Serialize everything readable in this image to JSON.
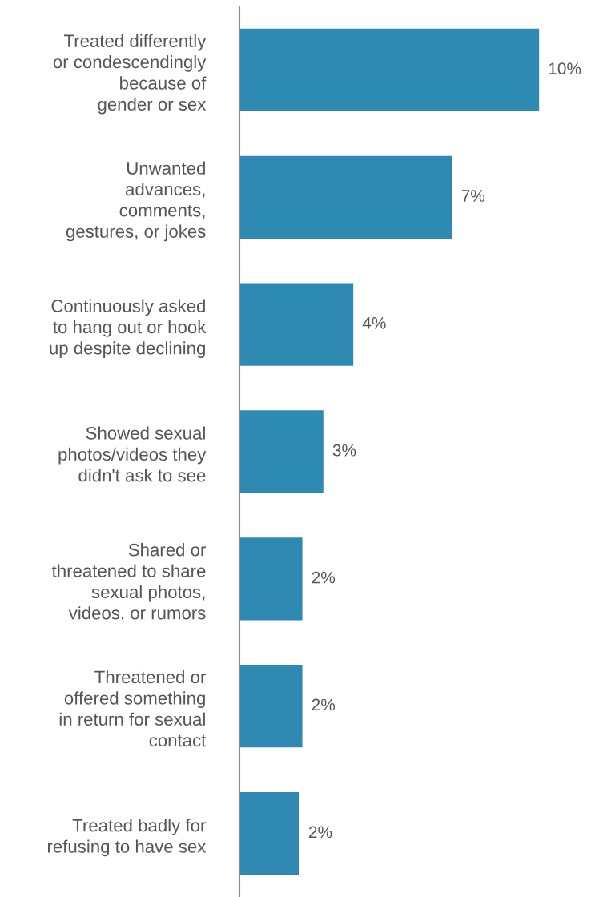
{
  "chart_data": {
    "type": "bar",
    "orientation": "horizontal",
    "categories": [
      "Treated differently\nor condescendingly\nbecause of\ngender or sex",
      "Unwanted\nadvances,\ncomments,\ngestures, or jokes",
      "Continuously asked\nto hang out or hook\nup despite declining",
      "Showed sexual\nphotos/videos they\ndidn't ask to see",
      "Shared or\nthreatened to share\nsexual photos,\nvideos, or rumors",
      "Threatened or\noffered something\nin return for sexual\ncontact",
      "Treated badly for\nrefusing to have sex"
    ],
    "values": [
      10,
      7.1,
      3.8,
      2.8,
      2.1,
      2.1,
      2.0
    ],
    "value_labels": [
      "10%",
      "7%",
      "4%",
      "3%",
      "2%",
      "2%",
      "2%"
    ],
    "color": "#2e8ab3",
    "tick_labels": "y",
    "grid": false,
    "legend": false
  }
}
